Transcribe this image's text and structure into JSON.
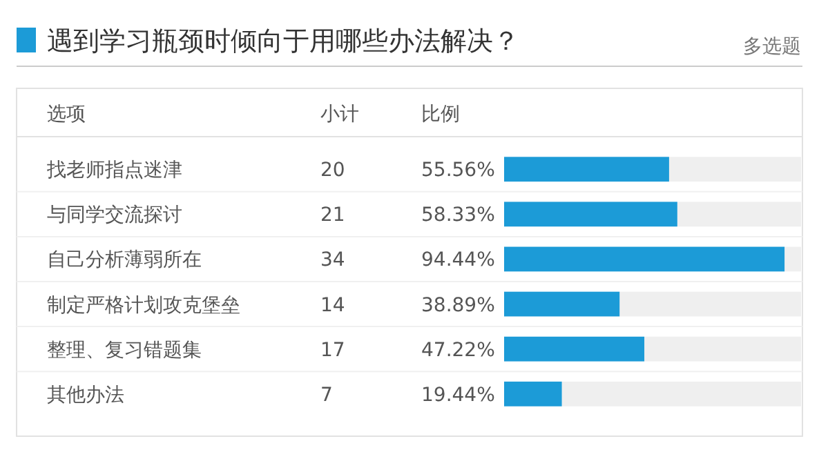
{
  "chart_data": {
    "type": "bar",
    "orientation": "horizontal",
    "title": "遇到学习瓶颈时倾向于用哪些办法解决？",
    "subtitle": "多选题",
    "categories": [
      "找老师指点迷津",
      "与同学交流探讨",
      "自己分析薄弱所在",
      "制定严格计划攻克堡垒",
      "整理、复习错题集",
      "其他办法"
    ],
    "values": [
      55.56,
      58.33,
      94.44,
      38.89,
      47.22,
      19.44
    ],
    "value_labels": [
      "55.56%",
      "58.33%",
      "94.44%",
      "38.89%",
      "47.22%",
      "19.44%"
    ],
    "color": "#1c9bd7",
    "xlim": [
      0,
      100
    ],
    "tick_labels": false,
    "annotations": [
      "选项",
      "小计",
      "比例",
      "20",
      "21",
      "34",
      "14",
      "17",
      "7"
    ]
  }
}
